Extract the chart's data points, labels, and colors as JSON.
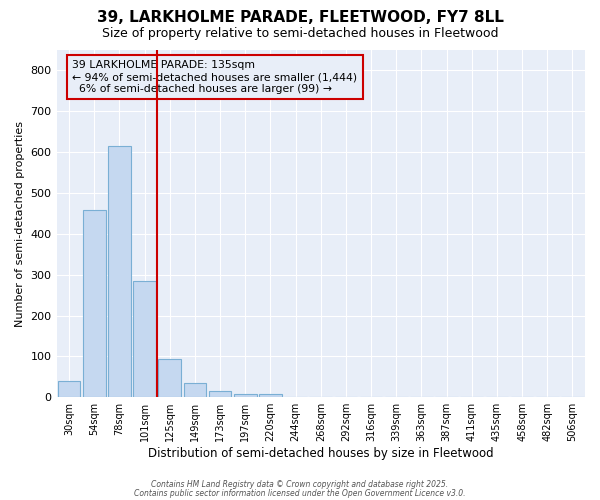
{
  "title": "39, LARKHOLME PARADE, FLEETWOOD, FY7 8LL",
  "subtitle": "Size of property relative to semi-detached houses in Fleetwood",
  "xlabel": "Distribution of semi-detached houses by size in Fleetwood",
  "ylabel": "Number of semi-detached properties",
  "categories": [
    "30sqm",
    "54sqm",
    "78sqm",
    "101sqm",
    "125sqm",
    "149sqm",
    "173sqm",
    "197sqm",
    "220sqm",
    "244sqm",
    "268sqm",
    "292sqm",
    "316sqm",
    "339sqm",
    "363sqm",
    "387sqm",
    "411sqm",
    "435sqm",
    "458sqm",
    "482sqm",
    "506sqm"
  ],
  "values": [
    40,
    458,
    615,
    285,
    93,
    35,
    15,
    8,
    8,
    0,
    0,
    0,
    0,
    0,
    0,
    0,
    0,
    0,
    0,
    0,
    0
  ],
  "bar_color": "#c5d8f0",
  "bar_edge_color": "#7aafd4",
  "background_color": "#ffffff",
  "plot_bg_color": "#e8eef8",
  "grid_color": "#ffffff",
  "vline_x": 3.5,
  "vline_color": "#cc0000",
  "annotation_title": "39 LARKHOLME PARADE: 135sqm",
  "annotation_line1": "← 94% of semi-detached houses are smaller (1,444)",
  "annotation_line2": "6% of semi-detached houses are larger (99) →",
  "annotation_box_color": "#cc0000",
  "ylim": [
    0,
    850
  ],
  "yticks": [
    0,
    100,
    200,
    300,
    400,
    500,
    600,
    700,
    800
  ],
  "footer1": "Contains HM Land Registry data © Crown copyright and database right 2025.",
  "footer2": "Contains public sector information licensed under the Open Government Licence v3.0."
}
